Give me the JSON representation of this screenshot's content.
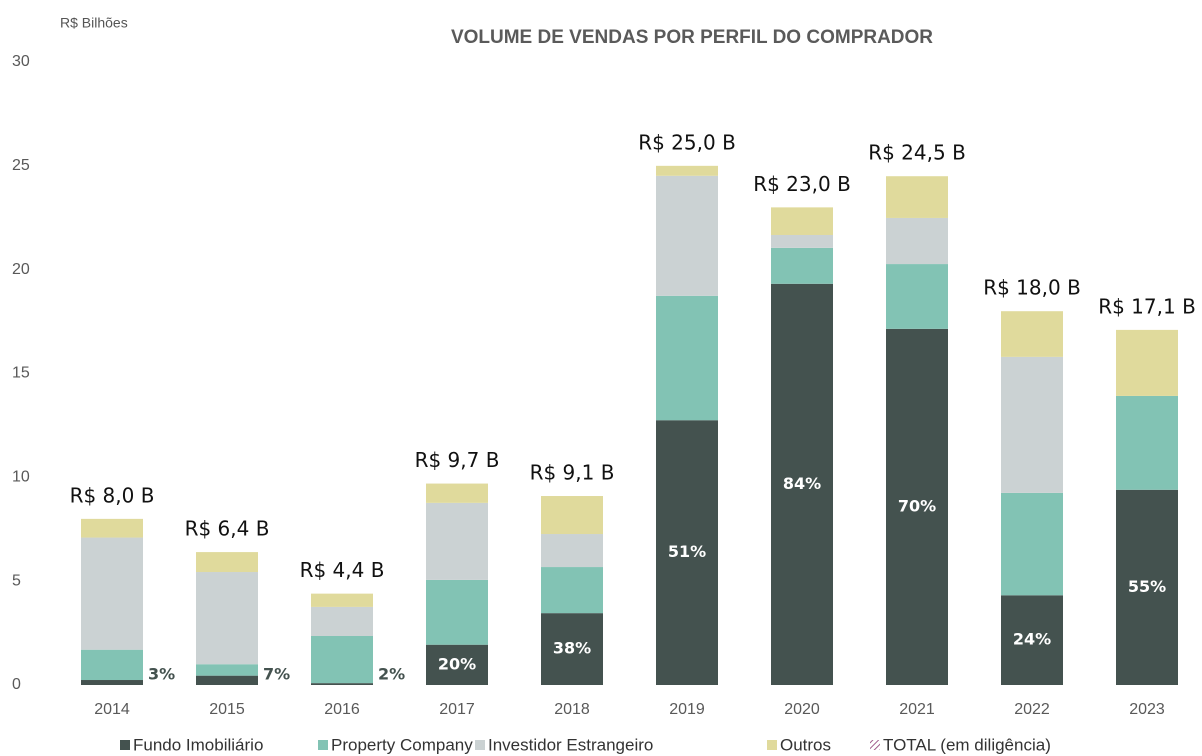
{
  "chart_data": {
    "type": "stacked_bar",
    "title": "VOLUME DE VENDAS POR PERFIL DO COMPRADOR",
    "y_axis_label": "R$ Bilhões",
    "categories": [
      "2014",
      "2015",
      "2016",
      "2017",
      "2018",
      "2019",
      "2020",
      "2021",
      "2022",
      "2023"
    ],
    "series": [
      {
        "name": "Fundo Imobiliário",
        "color": "#44524f",
        "values": [
          0.24,
          0.45,
          0.09,
          1.94,
          3.46,
          12.75,
          19.32,
          17.15,
          4.32,
          9.4
        ]
      },
      {
        "name": "Property Company",
        "color": "#82c3b4",
        "values": [
          1.46,
          0.55,
          2.27,
          3.12,
          2.22,
          5.99,
          1.73,
          3.12,
          4.93,
          4.52
        ]
      },
      {
        "name": "Investidor Estrangeiro",
        "color": "#cbd2d3",
        "values": [
          5.4,
          4.44,
          1.4,
          3.71,
          1.59,
          5.78,
          0.62,
          2.22,
          6.55,
          0
        ]
      },
      {
        "name": "Outros",
        "color": "#e0da9c",
        "values": [
          0.9,
          0.96,
          0.64,
          0.93,
          1.83,
          0.48,
          1.33,
          2.01,
          2.2,
          3.18
        ]
      }
    ],
    "totals": {
      "values": [
        8.0,
        6.4,
        4.4,
        9.7,
        9.1,
        25.0,
        23.0,
        24.5,
        18.0,
        17.1
      ],
      "value_labels": [
        "R$ 8,0 B",
        "R$ 6,4 B",
        "R$ 4,4 B",
        "R$ 9,7 B",
        "R$ 9,1 B",
        "R$ 25,0 B",
        "R$ 23,0 B",
        "R$ 24,5 B",
        "R$ 18,0 B",
        "R$ 17,1 B"
      ]
    },
    "fundo_share": {
      "values": [
        3,
        7,
        2,
        20,
        38,
        51,
        84,
        70,
        24,
        55
      ],
      "value_labels": [
        "3%",
        "7%",
        "2%",
        "20%",
        "38%",
        "51%",
        "84%",
        "70%",
        "24%",
        "55%"
      ]
    },
    "legend_extra": "TOTAL (em diligência)",
    "ylim": [
      0,
      30
    ],
    "yticks": [
      0,
      5,
      10,
      15,
      20,
      25,
      30
    ],
    "grid": false,
    "legend": "bottom"
  }
}
